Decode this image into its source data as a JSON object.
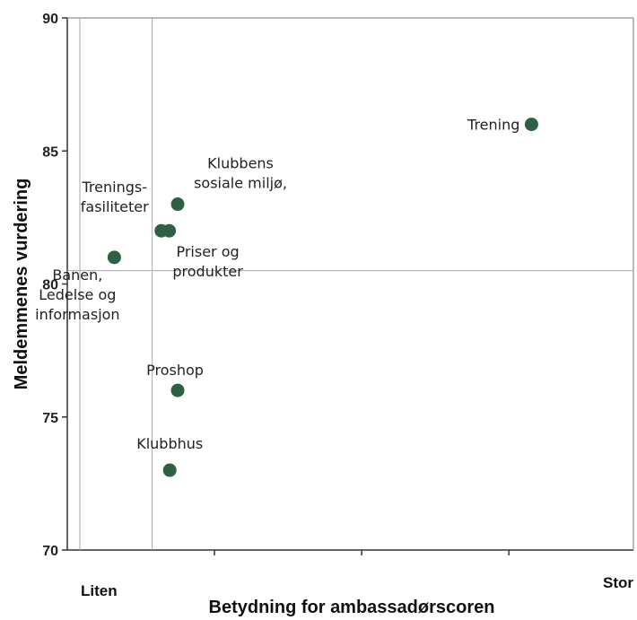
{
  "chart_data": {
    "type": "scatter",
    "title": "",
    "xlabel": "Betydning for ambassadørscoren",
    "ylabel": "Meldemmenes vurdering",
    "x_low_label": "Liten",
    "x_high_label": "Stor",
    "xlim": [
      0,
      10
    ],
    "ylim": [
      70,
      90
    ],
    "yticks": [
      "70",
      "75",
      "80",
      "85",
      "90"
    ],
    "x_ref": 1.5,
    "y_ref": 80.5,
    "marker_color": "#2e6143",
    "points": [
      {
        "x": 8.2,
        "y": 86,
        "label_lines": [
          "Trening"
        ]
      },
      {
        "x": 1.95,
        "y": 83,
        "label_lines": [
          "Klubbens",
          "sosiale miljø,"
        ]
      },
      {
        "x": 1.66,
        "y": 82,
        "label_lines": [
          "Trenings-",
          "fasiliteter"
        ]
      },
      {
        "x": 1.8,
        "y": 82,
        "label_lines": [
          "Priser og",
          "produkter"
        ]
      },
      {
        "x": 0.83,
        "y": 81,
        "label_lines": [
          "Banen,",
          "Ledelse og",
          "informasjon"
        ]
      },
      {
        "x": 1.95,
        "y": 76,
        "label_lines": [
          "Proshop"
        ]
      },
      {
        "x": 1.81,
        "y": 73,
        "label_lines": [
          "Klubbhus"
        ]
      }
    ]
  }
}
